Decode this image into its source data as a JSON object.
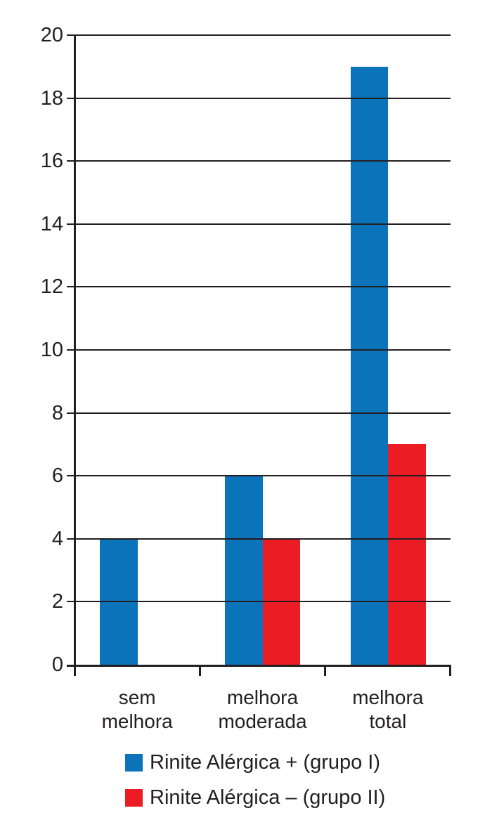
{
  "chart_data": {
    "type": "bar",
    "title": "",
    "xlabel": "",
    "ylabel": "",
    "categories": [
      "sem melhora",
      "melhora moderada",
      "melhora total"
    ],
    "category_label_lines": [
      [
        "sem",
        "melhora"
      ],
      [
        "melhora",
        "moderada"
      ],
      [
        "melhora",
        "total"
      ]
    ],
    "series": [
      {
        "name": "Rinite Alérgica + (grupo I)",
        "color": "#0a73ba",
        "values": [
          4,
          6,
          19
        ]
      },
      {
        "name": "Rinite Alérgica – (grupo II)",
        "color": "#ec1c25",
        "values": [
          0,
          4,
          7
        ]
      }
    ],
    "ylim": [
      0,
      20
    ],
    "yticks": [
      0,
      2,
      4,
      6,
      8,
      10,
      12,
      14,
      16,
      18,
      20
    ],
    "grid": true,
    "gridlines_over_bars": true,
    "axis_color": "#231f20",
    "background": "#ffffff",
    "legend_position": "bottom-left"
  }
}
